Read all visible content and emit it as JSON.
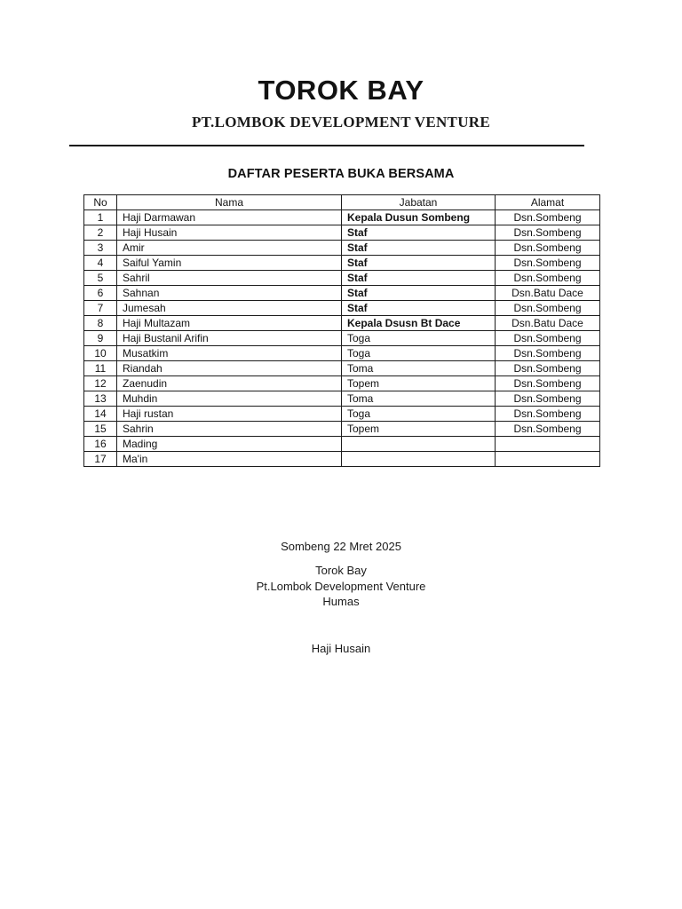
{
  "page": {
    "title": "TOROK BAY",
    "subtitle": "PT.LOMBOK DEVELOPMENT VENTURE",
    "doc_title": "DAFTAR PESERTA BUKA BERSAMA"
  },
  "table": {
    "headers": [
      "No",
      "Nama",
      "Jabatan",
      "Alamat"
    ],
    "rows": [
      {
        "no": "1",
        "nama": "Haji Darmawan",
        "jabatan": "Kepala Dusun Sombeng",
        "bold": true,
        "alamat": "Dsn.Sombeng"
      },
      {
        "no": "2",
        "nama": "Haji Husain",
        "jabatan": "Staf",
        "bold": true,
        "alamat": "Dsn.Sombeng"
      },
      {
        "no": "3",
        "nama": "Amir",
        "jabatan": "Staf",
        "bold": true,
        "alamat": "Dsn.Sombeng"
      },
      {
        "no": "4",
        "nama": "Saiful Yamin",
        "jabatan": "Staf",
        "bold": true,
        "alamat": "Dsn.Sombeng"
      },
      {
        "no": "5",
        "nama": "Sahril",
        "jabatan": "Staf",
        "bold": true,
        "alamat": "Dsn.Sombeng"
      },
      {
        "no": "6",
        "nama": "Sahnan",
        "jabatan": "Staf",
        "bold": true,
        "alamat": "Dsn.Batu Dace"
      },
      {
        "no": "7",
        "nama": "Jumesah",
        "jabatan": "Staf",
        "bold": true,
        "alamat": "Dsn.Sombeng"
      },
      {
        "no": "8",
        "nama": "Haji Multazam",
        "jabatan": "Kepala Dsusn Bt Dace",
        "bold": true,
        "alamat": "Dsn.Batu Dace"
      },
      {
        "no": "9",
        "nama": "Haji Bustanil Arifin",
        "jabatan": "Toga",
        "bold": false,
        "alamat": "Dsn.Sombeng"
      },
      {
        "no": "10",
        "nama": "Musatkim",
        "jabatan": "Toga",
        "bold": false,
        "alamat": "Dsn.Sombeng"
      },
      {
        "no": "11",
        "nama": "Riandah",
        "jabatan": "Toma",
        "bold": false,
        "alamat": "Dsn.Sombeng"
      },
      {
        "no": "12",
        "nama": "Zaenudin",
        "jabatan": "Topem",
        "bold": false,
        "alamat": "Dsn.Sombeng"
      },
      {
        "no": "13",
        "nama": "Muhdin",
        "jabatan": "Toma",
        "bold": false,
        "alamat": "Dsn.Sombeng"
      },
      {
        "no": "14",
        "nama": "Haji rustan",
        "jabatan": "Toga",
        "bold": false,
        "alamat": "Dsn.Sombeng"
      },
      {
        "no": "15",
        "nama": "Sahrin",
        "jabatan": "Topem",
        "bold": false,
        "alamat": "Dsn.Sombeng"
      },
      {
        "no": "16",
        "nama": "Mading",
        "jabatan": "",
        "bold": false,
        "alamat": ""
      },
      {
        "no": "17",
        "nama": "Ma'in",
        "jabatan": "",
        "bold": false,
        "alamat": ""
      }
    ]
  },
  "footer": {
    "dateline": "Sombeng 22 Mret 2025",
    "org_line1": "Torok Bay",
    "org_line2": "Pt.Lombok Development Venture",
    "org_line3": "Humas",
    "signatory": "Haji Husain"
  },
  "colors": {
    "background": "#ffffff",
    "text": "#161616",
    "border": "#1c1c1c"
  }
}
